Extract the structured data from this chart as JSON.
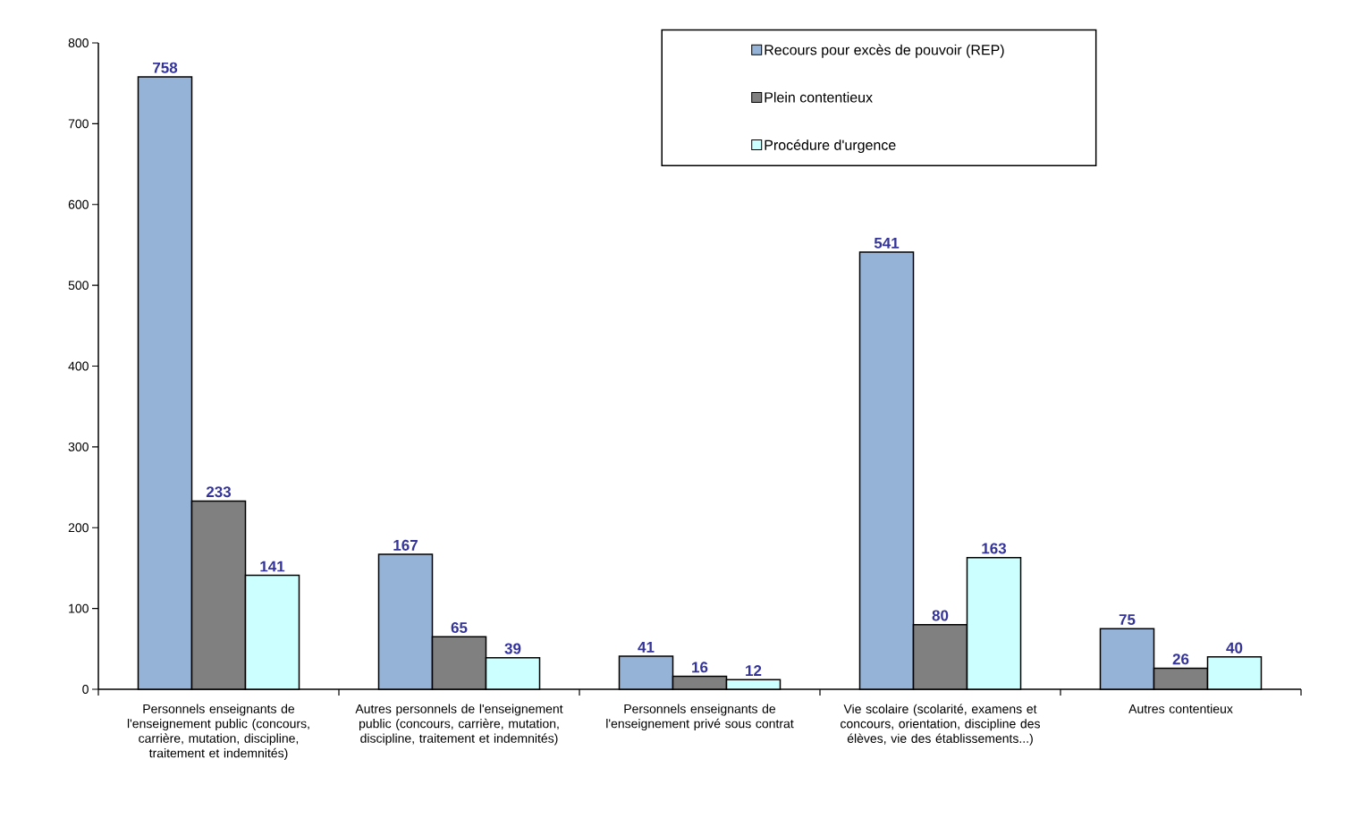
{
  "chart_data": {
    "type": "bar",
    "categories": [
      "Personnels enseignants de l'enseignement public (concours, carrière, mutation, discipline, traitement et indemnités)",
      "Autres personnels de l'enseignement public (concours, carrière, mutation, discipline, traitement et indemnités)",
      "Personnels enseignants de l'enseignement privé sous contrat",
      "Vie scolaire (scolarité, examens et concours, orientation, discipline des élèves, vie des établissements...)",
      "Autres contentieux"
    ],
    "series": [
      {
        "name": "Recours pour excès de pouvoir (REP)",
        "color": "#95b3d7",
        "values": [
          758,
          167,
          41,
          541,
          75
        ]
      },
      {
        "name": "Plein contentieux",
        "color": "#808080",
        "values": [
          233,
          65,
          16,
          80,
          26
        ]
      },
      {
        "name": "Procédure d'urgence",
        "color": "#ccffff",
        "values": [
          141,
          39,
          12,
          163,
          40
        ]
      }
    ],
    "ylim": [
      0,
      800
    ],
    "yticks": [
      0,
      100,
      200,
      300,
      400,
      500,
      600,
      700,
      800
    ],
    "data_labels": true,
    "legend": "top right"
  }
}
